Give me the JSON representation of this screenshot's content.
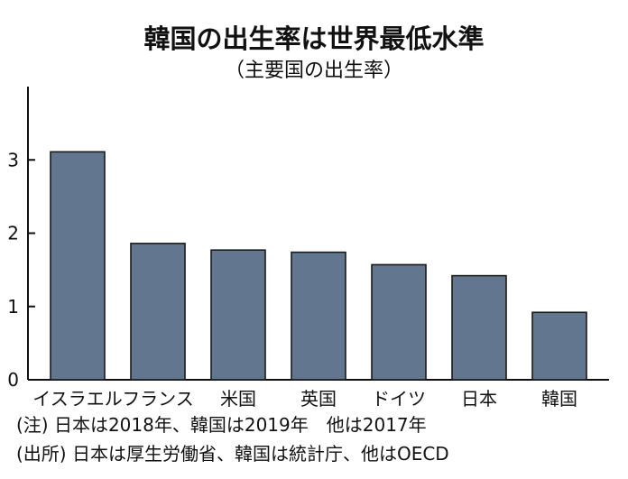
{
  "chart_data": {
    "type": "bar",
    "title": "韓国の出生率は世界最低水準",
    "subtitle": "（主要国の出生率）",
    "categories": [
      "イスラエル",
      "フランス",
      "米国",
      "英国",
      "ドイツ",
      "日本",
      "韓国"
    ],
    "values": [
      3.11,
      1.86,
      1.77,
      1.74,
      1.57,
      1.42,
      0.92
    ],
    "y_ticks": [
      "0",
      "1",
      "2",
      "3"
    ],
    "ylim": [
      0,
      4.0
    ],
    "grid": false,
    "bar_color": "#62778F",
    "bar_outline_color": "#1A1A1A",
    "notes": [
      "(注) 日本は2018年、韓国は2019年　他は2017年",
      "(出所) 日本は厚生労働省、韓国は統計庁、他はOECD"
    ]
  }
}
